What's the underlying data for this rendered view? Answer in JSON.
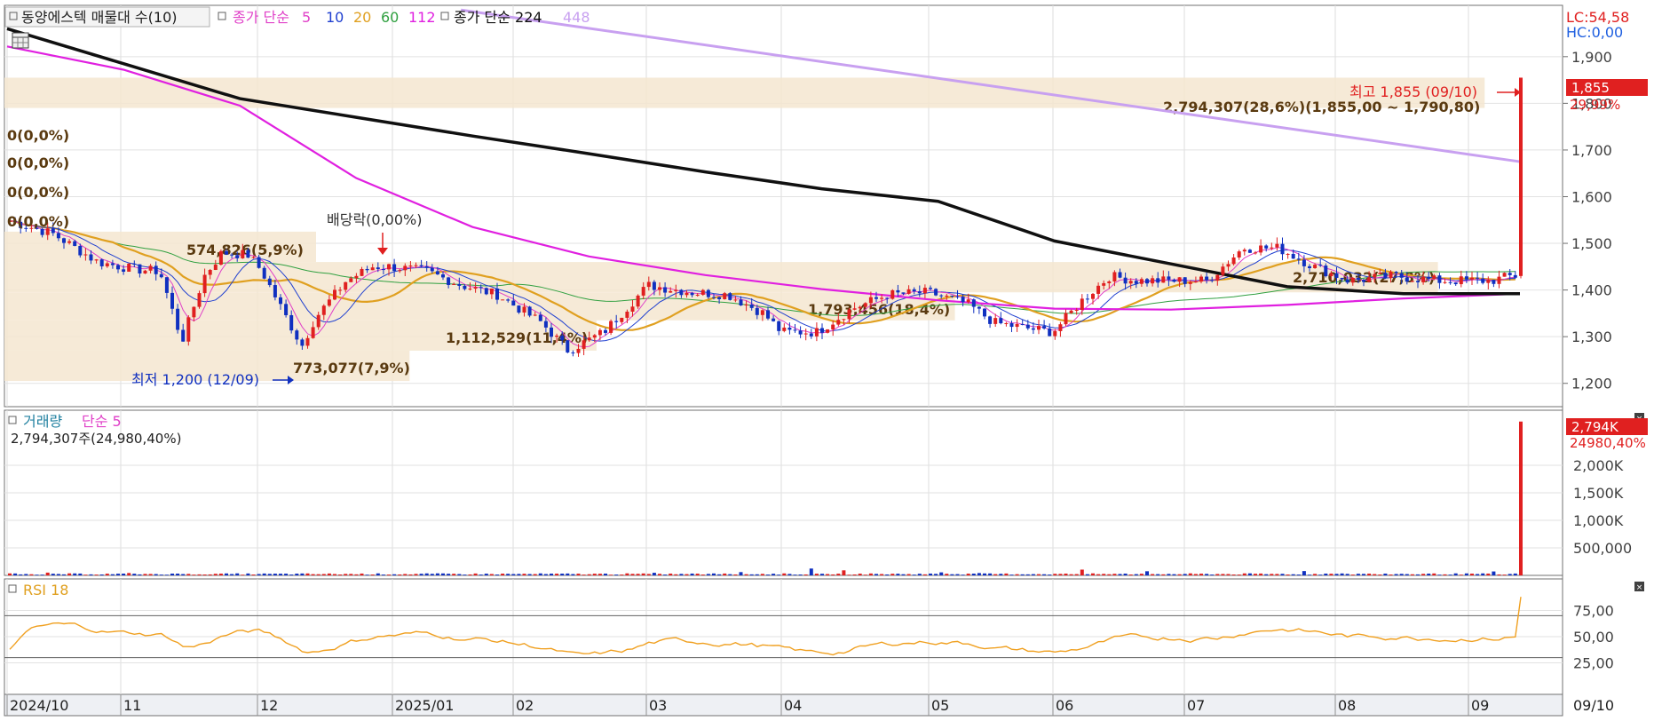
{
  "legend": {
    "stock_name": "동양에스텍 매물대 수(10)",
    "ma_label": "종가 단순",
    "ma_periods": [
      "5",
      "10",
      "20",
      "60",
      "112"
    ],
    "ma_colors": [
      "#e040c8",
      "#2040d0",
      "#e0a020",
      "#30a040",
      "#e020e0"
    ],
    "ma2_label": "종가 단순 224",
    "ma2_extra": "448",
    "ma2_extra_color": "#c8a0f0",
    "volume_label": "거래량",
    "volume_ma_label": "단순 5",
    "volume_value": "2,794,307주(24,980,40%)",
    "rsi_label": "RSI 18"
  },
  "badges": {
    "lc": "LC:54,58",
    "hc": "HC:0,00",
    "price_last": "1,855",
    "price_change": "29,99%",
    "volume_last": "2,794K",
    "volume_change": "24980,40%"
  },
  "annotations": {
    "high": "최고 1,855 (09/10)",
    "low": "최저 1,200 (12/09)",
    "dividend": "배당락(0,00%)",
    "zero_labels": [
      "0(0,0%)",
      "0(0,0%)",
      "0(0,0%)",
      "0(0,0%)"
    ]
  },
  "chart_data": [
    {
      "type": "candlestick",
      "x_ticks": [
        "2024/10",
        "11",
        "12",
        "2025/01",
        "02",
        "03",
        "04",
        "05",
        "06",
        "07",
        "08",
        "09",
        "09/10"
      ],
      "y_ticks": [
        "1,900",
        "1,800",
        "1,700",
        "1,600",
        "1,500",
        "1,400",
        "1,300",
        "1,200"
      ],
      "ylim": [
        1150,
        2010
      ],
      "colors": {
        "up": "#e02020",
        "down": "#1030c0"
      },
      "last": {
        "open": 1430,
        "high": 1855,
        "low": 1425,
        "close": 1855
      },
      "volume_profile": [
        {
          "label": "2,794,307(28,6%)(1,855,00 ~ 1,790,80)",
          "low": 1790,
          "high": 1855,
          "len": 0.95
        },
        {
          "label": "574,826(5,9%)",
          "low": 1460,
          "high": 1525,
          "len": 0.2
        },
        {
          "label": "2,710,032(27,8%)",
          "low": 1395,
          "high": 1460,
          "len": 0.92
        },
        {
          "label": "1,793,456(18,4%)",
          "low": 1335,
          "high": 1395,
          "len": 0.61
        },
        {
          "label": "1,112,529(11,4%)",
          "low": 1270,
          "high": 1335,
          "len": 0.38
        },
        {
          "label": "773,077(7,9%)",
          "low": 1205,
          "high": 1270,
          "len": 0.26
        }
      ],
      "ma_224": [
        1960,
        1885,
        1810,
        1770,
        1730,
        1692,
        1653,
        1617,
        1590,
        1505,
        1456,
        1407,
        1392,
        1392
      ],
      "ma_448_start": [
        0.3,
        2000
      ],
      "ma_448_end": [
        1.0,
        1675
      ],
      "ma_112": [
        1922,
        1872,
        1795,
        1640,
        1535,
        1472,
        1432,
        1402,
        1378,
        1360,
        1358,
        1368,
        1382,
        1392
      ]
    },
    {
      "type": "bar",
      "name": "거래량",
      "y_ticks": [
        "2,000K",
        "1,500K",
        "1,000K",
        "500,000"
      ],
      "ylim": [
        0,
        3000000
      ],
      "last_value": 2794307
    },
    {
      "type": "line",
      "name": "RSI 18",
      "y_ticks": [
        "75,00",
        "50,00",
        "25,00"
      ],
      "ylim": [
        0,
        100
      ],
      "bands": [
        70,
        30
      ],
      "last_value": 88
    }
  ]
}
